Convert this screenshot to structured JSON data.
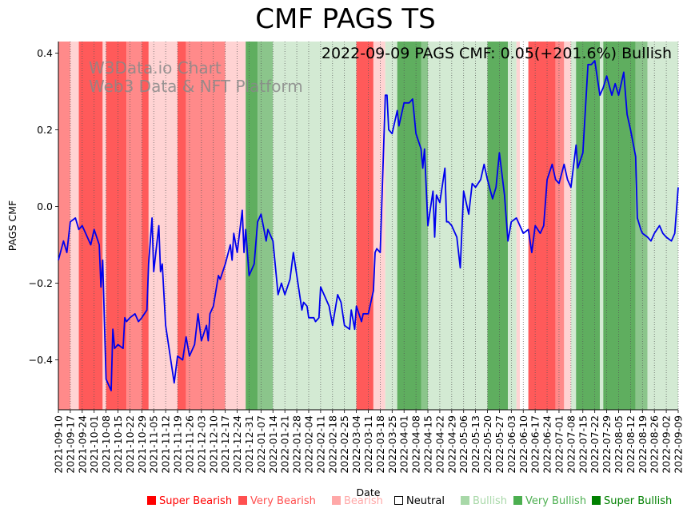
{
  "title": "CMF PAGS TS",
  "annotation": "2022-09-09 PAGS CMF: 0.05(+201.6%) Bullish",
  "watermark": [
    "W3Data.io Chart",
    "Web3 Data & NFT Platform"
  ],
  "colors": {
    "line": "#0000ee",
    "super_bearish": "#ff5a5a",
    "very_bearish": "#ff8a8a",
    "bearish": "#ffd3d3",
    "neutral": "#ffffff",
    "bullish": "#d3ead3",
    "very_bullish": "#8bc58b",
    "super_bullish": "#5fae5f"
  },
  "legend": [
    {
      "label": "Super Bearish",
      "swatch": "#ff0000",
      "text_color": "#ff0000"
    },
    {
      "label": "Very Bearish",
      "swatch": "#ff5050",
      "text_color": "#ff5050"
    },
    {
      "label": "Bearish",
      "swatch": "#ffa8a8",
      "text_color": "#ffa8a8"
    },
    {
      "label": "Neutral",
      "swatch": "#ffffff",
      "text_color": "#000000"
    },
    {
      "label": "Bullish",
      "swatch": "#a8d8a8",
      "text_color": "#a8d8a8"
    },
    {
      "label": "Very Bullish",
      "swatch": "#4caf50",
      "text_color": "#4caf50"
    },
    {
      "label": "Super Bullish",
      "swatch": "#008000",
      "text_color": "#008000"
    }
  ],
  "chart_data": {
    "type": "line",
    "title": "CMF PAGS TS",
    "xlabel": "Date",
    "ylabel": "PAGS CMF",
    "ylim": [
      -0.53,
      0.43
    ],
    "xlim": [
      "2021-09-10",
      "2022-09-09"
    ],
    "yticks": [
      -0.4,
      -0.2,
      0.0,
      0.2,
      0.4
    ],
    "ytick_labels": [
      "−0.4",
      "−0.2",
      "0.0",
      "0.2",
      "0.4"
    ],
    "xtick_labels": [
      "2021-09-10",
      "2021-09-17",
      "2021-09-24",
      "2021-10-01",
      "2021-10-08",
      "2021-10-15",
      "2021-10-22",
      "2021-10-29",
      "2021-11-05",
      "2021-11-12",
      "2021-11-19",
      "2021-11-26",
      "2021-12-03",
      "2021-12-10",
      "2021-12-17",
      "2021-12-24",
      "2021-12-31",
      "2022-01-07",
      "2022-01-14",
      "2022-01-21",
      "2022-01-28",
      "2022-02-04",
      "2022-02-11",
      "2022-02-18",
      "2022-02-25",
      "2022-03-04",
      "2022-03-11",
      "2022-03-18",
      "2022-03-25",
      "2022-04-01",
      "2022-04-08",
      "2022-04-15",
      "2022-04-22",
      "2022-04-29",
      "2022-05-06",
      "2022-05-13",
      "2022-05-20",
      "2022-05-27",
      "2022-06-03",
      "2022-06-10",
      "2022-06-17",
      "2022-06-24",
      "2022-07-01",
      "2022-07-08",
      "2022-07-15",
      "2022-07-22",
      "2022-07-29",
      "2022-08-05",
      "2022-08-12",
      "2022-08-19",
      "2022-08-26",
      "2022-09-02",
      "2022-09-09"
    ],
    "grid": "vertical dotted at weekly ticks",
    "series": [
      {
        "points": [
          [
            "2021-09-10",
            -0.14
          ],
          [
            "2021-09-13",
            -0.09
          ],
          [
            "2021-09-15",
            -0.12
          ],
          [
            "2021-09-17",
            -0.04
          ],
          [
            "2021-09-20",
            -0.03
          ],
          [
            "2021-09-22",
            -0.06
          ],
          [
            "2021-09-24",
            -0.05
          ],
          [
            "2021-09-27",
            -0.08
          ],
          [
            "2021-09-29",
            -0.1
          ],
          [
            "2021-10-01",
            -0.06
          ],
          [
            "2021-10-04",
            -0.1
          ],
          [
            "2021-10-05",
            -0.21
          ],
          [
            "2021-10-06",
            -0.14
          ],
          [
            "2021-10-08",
            -0.45
          ],
          [
            "2021-10-11",
            -0.48
          ],
          [
            "2021-10-12",
            -0.32
          ],
          [
            "2021-10-13",
            -0.37
          ],
          [
            "2021-10-15",
            -0.36
          ],
          [
            "2021-10-18",
            -0.37
          ],
          [
            "2021-10-19",
            -0.29
          ],
          [
            "2021-10-20",
            -0.3
          ],
          [
            "2021-10-22",
            -0.29
          ],
          [
            "2021-10-25",
            -0.28
          ],
          [
            "2021-10-27",
            -0.3
          ],
          [
            "2021-10-29",
            -0.29
          ],
          [
            "2021-11-01",
            -0.27
          ],
          [
            "2021-11-02",
            -0.15
          ],
          [
            "2021-11-04",
            -0.03
          ],
          [
            "2021-11-05",
            -0.17
          ],
          [
            "2021-11-08",
            -0.05
          ],
          [
            "2021-11-09",
            -0.17
          ],
          [
            "2021-11-10",
            -0.15
          ],
          [
            "2021-11-12",
            -0.31
          ],
          [
            "2021-11-15",
            -0.4
          ],
          [
            "2021-11-17",
            -0.46
          ],
          [
            "2021-11-19",
            -0.39
          ],
          [
            "2021-11-22",
            -0.4
          ],
          [
            "2021-11-24",
            -0.34
          ],
          [
            "2021-11-26",
            -0.39
          ],
          [
            "2021-11-29",
            -0.36
          ],
          [
            "2021-12-01",
            -0.28
          ],
          [
            "2021-12-03",
            -0.35
          ],
          [
            "2021-12-06",
            -0.31
          ],
          [
            "2021-12-07",
            -0.35
          ],
          [
            "2021-12-08",
            -0.28
          ],
          [
            "2021-12-10",
            -0.26
          ],
          [
            "2021-12-13",
            -0.18
          ],
          [
            "2021-12-14",
            -0.19
          ],
          [
            "2021-12-17",
            -0.15
          ],
          [
            "2021-12-20",
            -0.1
          ],
          [
            "2021-12-21",
            -0.14
          ],
          [
            "2021-12-22",
            -0.07
          ],
          [
            "2021-12-24",
            -0.12
          ],
          [
            "2021-12-27",
            -0.01
          ],
          [
            "2021-12-28",
            -0.12
          ],
          [
            "2021-12-29",
            -0.06
          ],
          [
            "2021-12-31",
            -0.18
          ],
          [
            "2022-01-03",
            -0.15
          ],
          [
            "2022-01-05",
            -0.04
          ],
          [
            "2022-01-07",
            -0.02
          ],
          [
            "2022-01-10",
            -0.09
          ],
          [
            "2022-01-11",
            -0.06
          ],
          [
            "2022-01-14",
            -0.09
          ],
          [
            "2022-01-17",
            -0.23
          ],
          [
            "2022-01-19",
            -0.2
          ],
          [
            "2022-01-21",
            -0.23
          ],
          [
            "2022-01-24",
            -0.19
          ],
          [
            "2022-01-26",
            -0.12
          ],
          [
            "2022-01-28",
            -0.18
          ],
          [
            "2022-01-31",
            -0.27
          ],
          [
            "2022-02-01",
            -0.25
          ],
          [
            "2022-02-03",
            -0.26
          ],
          [
            "2022-02-04",
            -0.29
          ],
          [
            "2022-02-07",
            -0.29
          ],
          [
            "2022-02-08",
            -0.3
          ],
          [
            "2022-02-10",
            -0.29
          ],
          [
            "2022-02-11",
            -0.21
          ],
          [
            "2022-02-14",
            -0.24
          ],
          [
            "2022-02-16",
            -0.26
          ],
          [
            "2022-02-18",
            -0.31
          ],
          [
            "2022-02-21",
            -0.23
          ],
          [
            "2022-02-23",
            -0.25
          ],
          [
            "2022-02-25",
            -0.31
          ],
          [
            "2022-02-28",
            -0.32
          ],
          [
            "2022-03-01",
            -0.27
          ],
          [
            "2022-03-03",
            -0.32
          ],
          [
            "2022-03-04",
            -0.26
          ],
          [
            "2022-03-07",
            -0.3
          ],
          [
            "2022-03-08",
            -0.28
          ],
          [
            "2022-03-11",
            -0.28
          ],
          [
            "2022-03-14",
            -0.22
          ],
          [
            "2022-03-15",
            -0.12
          ],
          [
            "2022-03-16",
            -0.11
          ],
          [
            "2022-03-18",
            -0.12
          ],
          [
            "2022-03-21",
            0.29
          ],
          [
            "2022-03-22",
            0.29
          ],
          [
            "2022-03-23",
            0.2
          ],
          [
            "2022-03-25",
            0.19
          ],
          [
            "2022-03-28",
            0.25
          ],
          [
            "2022-03-29",
            0.21
          ],
          [
            "2022-04-01",
            0.27
          ],
          [
            "2022-04-04",
            0.27
          ],
          [
            "2022-04-06",
            0.28
          ],
          [
            "2022-04-08",
            0.19
          ],
          [
            "2022-04-11",
            0.15
          ],
          [
            "2022-04-12",
            0.1
          ],
          [
            "2022-04-13",
            0.15
          ],
          [
            "2022-04-15",
            -0.05
          ],
          [
            "2022-04-18",
            0.04
          ],
          [
            "2022-04-19",
            -0.08
          ],
          [
            "2022-04-20",
            0.03
          ],
          [
            "2022-04-22",
            0.01
          ],
          [
            "2022-04-25",
            0.1
          ],
          [
            "2022-04-26",
            -0.04
          ],
          [
            "2022-04-27",
            -0.04
          ],
          [
            "2022-04-29",
            -0.05
          ],
          [
            "2022-05-02",
            -0.08
          ],
          [
            "2022-05-04",
            -0.16
          ],
          [
            "2022-05-06",
            0.04
          ],
          [
            "2022-05-09",
            -0.02
          ],
          [
            "2022-05-11",
            0.06
          ],
          [
            "2022-05-13",
            0.05
          ],
          [
            "2022-05-16",
            0.07
          ],
          [
            "2022-05-18",
            0.11
          ],
          [
            "2022-05-20",
            0.07
          ],
          [
            "2022-05-23",
            0.02
          ],
          [
            "2022-05-25",
            0.05
          ],
          [
            "2022-05-27",
            0.14
          ],
          [
            "2022-05-30",
            0.03
          ],
          [
            "2022-06-01",
            -0.09
          ],
          [
            "2022-06-03",
            -0.04
          ],
          [
            "2022-06-06",
            -0.03
          ],
          [
            "2022-06-08",
            -0.05
          ],
          [
            "2022-06-10",
            -0.07
          ],
          [
            "2022-06-13",
            -0.06
          ],
          [
            "2022-06-15",
            -0.12
          ],
          [
            "2022-06-17",
            -0.05
          ],
          [
            "2022-06-20",
            -0.07
          ],
          [
            "2022-06-22",
            -0.05
          ],
          [
            "2022-06-24",
            0.07
          ],
          [
            "2022-06-27",
            0.11
          ],
          [
            "2022-06-29",
            0.07
          ],
          [
            "2022-07-01",
            0.06
          ],
          [
            "2022-07-04",
            0.11
          ],
          [
            "2022-07-06",
            0.07
          ],
          [
            "2022-07-08",
            0.05
          ],
          [
            "2022-07-11",
            0.16
          ],
          [
            "2022-07-12",
            0.1
          ],
          [
            "2022-07-15",
            0.14
          ],
          [
            "2022-07-18",
            0.37
          ],
          [
            "2022-07-20",
            0.37
          ],
          [
            "2022-07-22",
            0.38
          ],
          [
            "2022-07-25",
            0.29
          ],
          [
            "2022-07-27",
            0.31
          ],
          [
            "2022-07-29",
            0.34
          ],
          [
            "2022-08-01",
            0.29
          ],
          [
            "2022-08-03",
            0.32
          ],
          [
            "2022-08-05",
            0.29
          ],
          [
            "2022-08-08",
            0.35
          ],
          [
            "2022-08-10",
            0.24
          ],
          [
            "2022-08-12",
            0.2
          ],
          [
            "2022-08-15",
            0.13
          ],
          [
            "2022-08-16",
            -0.03
          ],
          [
            "2022-08-18",
            -0.06
          ],
          [
            "2022-08-19",
            -0.07
          ],
          [
            "2022-08-22",
            -0.08
          ],
          [
            "2022-08-24",
            -0.09
          ],
          [
            "2022-08-26",
            -0.07
          ],
          [
            "2022-08-29",
            -0.05
          ],
          [
            "2022-08-31",
            -0.07
          ],
          [
            "2022-09-02",
            -0.08
          ],
          [
            "2022-09-05",
            -0.09
          ],
          [
            "2022-09-07",
            -0.07
          ],
          [
            "2022-09-09",
            0.05
          ]
        ]
      }
    ],
    "background_bands": [
      {
        "from": "2021-09-10",
        "to": "2021-09-17",
        "level": "very_bearish"
      },
      {
        "from": "2021-09-17",
        "to": "2021-09-22",
        "level": "bearish"
      },
      {
        "from": "2021-09-22",
        "to": "2021-10-06",
        "level": "super_bearish"
      },
      {
        "from": "2021-10-06",
        "to": "2021-10-08",
        "level": "bearish"
      },
      {
        "from": "2021-10-08",
        "to": "2021-10-20",
        "level": "super_bearish"
      },
      {
        "from": "2021-10-20",
        "to": "2021-10-29",
        "level": "very_bearish"
      },
      {
        "from": "2021-10-29",
        "to": "2021-11-02",
        "level": "super_bearish"
      },
      {
        "from": "2021-11-02",
        "to": "2021-11-19",
        "level": "bearish"
      },
      {
        "from": "2021-11-19",
        "to": "2021-11-24",
        "level": "super_bearish"
      },
      {
        "from": "2021-11-24",
        "to": "2021-12-17",
        "level": "very_bearish"
      },
      {
        "from": "2021-12-17",
        "to": "2021-12-29",
        "level": "bearish"
      },
      {
        "from": "2021-12-29",
        "to": "2022-01-05",
        "level": "super_bullish"
      },
      {
        "from": "2022-01-05",
        "to": "2022-01-14",
        "level": "very_bullish"
      },
      {
        "from": "2022-01-14",
        "to": "2022-01-21",
        "level": "bullish"
      },
      {
        "from": "2022-01-21",
        "to": "2022-03-04",
        "level": "bullish"
      },
      {
        "from": "2022-03-04",
        "to": "2022-03-14",
        "level": "super_bearish"
      },
      {
        "from": "2022-03-14",
        "to": "2022-03-21",
        "level": "bearish"
      },
      {
        "from": "2022-03-21",
        "to": "2022-03-28",
        "level": "bullish"
      },
      {
        "from": "2022-03-28",
        "to": "2022-04-11",
        "level": "super_bullish"
      },
      {
        "from": "2022-04-11",
        "to": "2022-04-15",
        "level": "very_bullish"
      },
      {
        "from": "2022-04-15",
        "to": "2022-05-20",
        "level": "bullish"
      },
      {
        "from": "2022-05-20",
        "to": "2022-06-01",
        "level": "super_bullish"
      },
      {
        "from": "2022-06-01",
        "to": "2022-06-06",
        "level": "bullish"
      },
      {
        "from": "2022-06-06",
        "to": "2022-06-08",
        "level": "bearish"
      },
      {
        "from": "2022-06-08",
        "to": "2022-06-13",
        "level": "neutral"
      },
      {
        "from": "2022-06-13",
        "to": "2022-06-29",
        "level": "super_bearish"
      },
      {
        "from": "2022-06-29",
        "to": "2022-07-04",
        "level": "very_bearish"
      },
      {
        "from": "2022-07-04",
        "to": "2022-07-08",
        "level": "bearish"
      },
      {
        "from": "2022-07-08",
        "to": "2022-07-11",
        "level": "bullish"
      },
      {
        "from": "2022-07-11",
        "to": "2022-07-25",
        "level": "super_bullish"
      },
      {
        "from": "2022-07-25",
        "to": "2022-07-27",
        "level": "bullish"
      },
      {
        "from": "2022-07-27",
        "to": "2022-08-15",
        "level": "super_bullish"
      },
      {
        "from": "2022-08-15",
        "to": "2022-08-22",
        "level": "very_bullish"
      },
      {
        "from": "2022-08-22",
        "to": "2022-09-09",
        "level": "bullish"
      }
    ]
  }
}
